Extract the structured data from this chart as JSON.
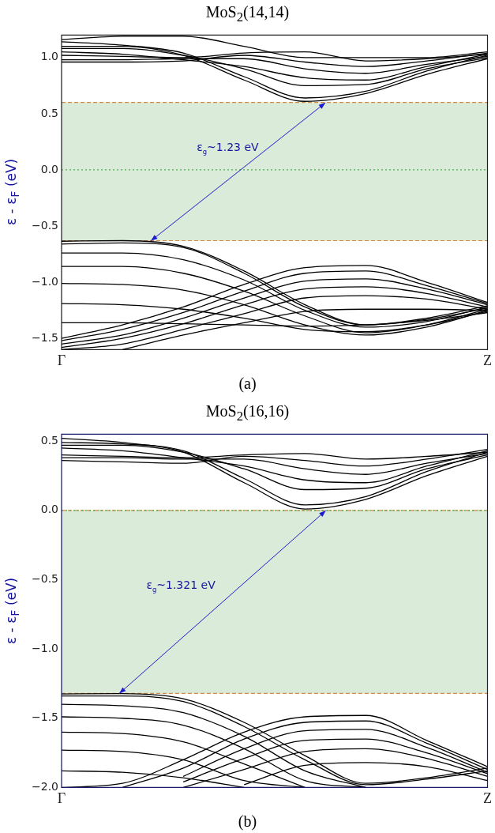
{
  "chart_data": [
    {
      "type": "line",
      "title": "MoS$_{2}$(14,14)",
      "ylabel": "ε - ε$_{F}$ (eV)",
      "categories": [
        "Γ",
        null,
        null,
        null,
        null,
        null,
        null,
        "Z"
      ],
      "ylim": [
        -1.6,
        1.2
      ],
      "yticks": [
        {
          "value": -1.5,
          "label": "−1.5"
        },
        {
          "value": -1,
          "label": "−1.0"
        },
        {
          "value": -0.5,
          "label": "−0.5"
        },
        {
          "value": 0,
          "label": "0.0"
        },
        {
          "value": 0.5,
          "label": "0.5"
        },
        {
          "value": 1,
          "label": "1.0"
        }
      ],
      "series": [
        {
          "color": "#000000",
          "values": [
            -0.635,
            -0.63,
            -0.68,
            -0.9,
            -1.2,
            -1.38,
            -1.32,
            -1.21
          ]
        },
        {
          "color": "#000000",
          "values": [
            -0.66,
            -0.65,
            -0.69,
            -0.92,
            -1.22,
            -1.38,
            -1.33,
            -1.23
          ]
        },
        {
          "color": "#000000",
          "values": [
            -0.74,
            -0.74,
            -0.8,
            -0.98,
            -1.25,
            -1.4,
            -1.35,
            -1.22
          ]
        },
        {
          "color": "#000000",
          "values": [
            -0.86,
            -0.86,
            -0.92,
            -1.08,
            -1.3,
            -1.45,
            -1.38,
            -1.24
          ]
        },
        {
          "color": "#000000",
          "values": [
            -1.01,
            -1.02,
            -1.07,
            -1.2,
            -1.38,
            -1.47,
            -1.4,
            -1.25
          ]
        },
        {
          "color": "#000000",
          "values": [
            -1.19,
            -1.2,
            -1.24,
            -1.32,
            -1.42,
            -1.44,
            -1.38,
            -1.26
          ]
        },
        {
          "color": "#000000",
          "values": [
            -1.36,
            -1.36,
            -1.37,
            -1.38,
            -1.39,
            -1.38,
            -1.34,
            -1.27
          ]
        },
        {
          "color": "#000000",
          "values": [
            -1.5,
            -1.38,
            -1.22,
            -1.02,
            -0.87,
            -0.85,
            -1.0,
            -1.18
          ]
        },
        {
          "color": "#000000",
          "values": [
            -1.52,
            -1.42,
            -1.27,
            -1.08,
            -0.92,
            -0.9,
            -1.03,
            -1.19
          ]
        },
        {
          "color": "#000000",
          "values": [
            -1.55,
            -1.47,
            -1.32,
            -1.14,
            -0.99,
            -0.97,
            -1.06,
            -1.2
          ]
        },
        {
          "color": "#000000",
          "values": [
            -1.58,
            -1.5,
            -1.37,
            -1.2,
            -1.06,
            -1.04,
            -1.1,
            -1.22
          ]
        },
        {
          "color": "#000000",
          "values": [
            -1.6,
            -1.55,
            -1.42,
            -1.28,
            -1.14,
            -1.12,
            -1.15,
            -1.24
          ]
        },
        {
          "color": "#000000",
          "values": [
            null,
            -1.6,
            -1.47,
            -1.36,
            -1.26,
            -1.24,
            -1.24,
            -1.25
          ]
        },
        {
          "color": "#000000",
          "values": [
            1.1,
            1.1,
            1.02,
            0.8,
            0.61,
            0.68,
            0.85,
            0.99
          ]
        },
        {
          "color": "#000000",
          "values": [
            1.14,
            1.11,
            1.04,
            0.83,
            0.64,
            0.7,
            0.88,
            1.02
          ]
        },
        {
          "color": "#000000",
          "values": [
            1.08,
            1.08,
            1.02,
            0.9,
            0.75,
            0.76,
            0.9,
            1.0
          ]
        },
        {
          "color": "#000000",
          "values": [
            1.05,
            1.03,
            0.98,
            0.92,
            0.82,
            0.8,
            0.92,
            1.03
          ]
        },
        {
          "color": "#000000",
          "values": [
            0.98,
            0.98,
            0.99,
            0.99,
            0.9,
            0.86,
            0.94,
            1.01
          ]
        },
        {
          "color": "#000000",
          "values": [
            0.96,
            0.96,
            0.97,
            1.02,
            0.96,
            0.92,
            0.97,
            1.04
          ]
        },
        {
          "color": "#000000",
          "values": [
            1.02,
            1.01,
            1.0,
            1.04,
            1.05,
            0.97,
            0.99,
            1.03
          ]
        },
        {
          "color": "#000000",
          "values": [
            1.16,
            1.19,
            1.19,
            1.1,
            1.0,
            1.0,
            1.0,
            1.05
          ]
        }
      ],
      "ref_lines": [
        {
          "axis": "y",
          "value": 0.6,
          "color": "#d08a4a",
          "line_style": "dashed"
        },
        {
          "axis": "y",
          "value": -0.63,
          "color": "#d08a4a",
          "line_style": "dashed"
        },
        {
          "axis": "y",
          "value": 0,
          "color": "#4caf50",
          "line_style": "dotted"
        }
      ],
      "bands": [
        {
          "axis": "y",
          "from": -0.63,
          "to": 0.6,
          "color": "#dbebda"
        }
      ],
      "annotations": [
        "ε$_{g}$~1.23 eV",
        "(a)"
      ]
    },
    {
      "type": "line",
      "title": "MoS$_{2}$(16,16)",
      "ylabel": "ε - ε$_{F}$ (eV)",
      "categories": [
        "Γ",
        null,
        null,
        null,
        null,
        null,
        null,
        "Z"
      ],
      "ylim": [
        -2,
        0.55
      ],
      "yticks": [
        {
          "value": -2,
          "label": "−2.0"
        },
        {
          "value": -1.5,
          "label": "−1.5"
        },
        {
          "value": -1,
          "label": "−1.0"
        },
        {
          "value": -0.5,
          "label": "−0.5"
        },
        {
          "value": 0,
          "label": "0.0"
        },
        {
          "value": 0.5,
          "label": "0.5"
        }
      ],
      "series": [
        {
          "color": "#000000",
          "values": [
            -1.325,
            -1.322,
            -1.36,
            -1.53,
            -1.77,
            -1.97,
            -1.93,
            -1.86
          ]
        },
        {
          "color": "#000000",
          "values": [
            -1.34,
            -1.34,
            -1.38,
            -1.56,
            -1.8,
            -1.98,
            -1.94,
            -1.88
          ]
        },
        {
          "color": "#000000",
          "values": [
            -1.4,
            -1.41,
            -1.46,
            -1.63,
            -1.88,
            -2.0,
            null,
            null
          ]
        },
        {
          "color": "#000000",
          "values": [
            -1.49,
            -1.5,
            -1.55,
            -1.72,
            -1.95,
            -2.0,
            null,
            null
          ]
        },
        {
          "color": "#000000",
          "values": [
            -1.6,
            -1.61,
            -1.67,
            -1.83,
            -2.0,
            null,
            null,
            null
          ]
        },
        {
          "color": "#000000",
          "values": [
            -1.73,
            -1.74,
            -1.8,
            -1.95,
            -2.0,
            null,
            null,
            null
          ]
        },
        {
          "color": "#000000",
          "values": [
            -1.88,
            -1.89,
            -1.93,
            -2.0,
            null,
            null,
            null,
            null
          ]
        },
        {
          "color": "#000000",
          "values": [
            -2.0,
            -1.97,
            -1.8,
            -1.6,
            -1.49,
            -1.48,
            -1.66,
            -1.85
          ]
        },
        {
          "color": "#000000",
          "values": [
            null,
            -2.0,
            -1.86,
            -1.65,
            -1.53,
            -1.52,
            -1.68,
            -1.87
          ]
        },
        {
          "color": "#000000",
          "values": [
            null,
            null,
            -1.92,
            -1.72,
            -1.59,
            -1.58,
            -1.71,
            -1.89
          ]
        },
        {
          "color": "#000000",
          "values": [
            null,
            null,
            -1.96,
            -1.79,
            -1.66,
            -1.65,
            -1.75,
            -1.9
          ]
        },
        {
          "color": "#000000",
          "values": [
            null,
            null,
            -2.0,
            -1.87,
            -1.74,
            -1.72,
            -1.79,
            -1.92
          ]
        },
        {
          "color": "#000000",
          "values": [
            null,
            null,
            null,
            -1.98,
            -1.84,
            -1.82,
            -1.85,
            -1.95
          ]
        },
        {
          "color": "#000000",
          "values": [
            0.52,
            0.49,
            0.42,
            0.2,
            0.01,
            0.08,
            0.25,
            0.39
          ]
        },
        {
          "color": "#000000",
          "values": [
            0.49,
            0.48,
            0.43,
            0.23,
            0.04,
            0.1,
            0.28,
            0.42
          ]
        },
        {
          "color": "#000000",
          "values": [
            0.47,
            0.47,
            0.42,
            0.3,
            0.15,
            0.16,
            0.3,
            0.4
          ]
        },
        {
          "color": "#000000",
          "values": [
            0.45,
            0.43,
            0.38,
            0.32,
            0.22,
            0.2,
            0.32,
            0.43
          ]
        },
        {
          "color": "#000000",
          "values": [
            0.38,
            0.38,
            0.37,
            0.37,
            0.3,
            0.26,
            0.34,
            0.41
          ]
        },
        {
          "color": "#000000",
          "values": [
            0.36,
            0.35,
            0.34,
            0.39,
            0.36,
            0.32,
            0.37,
            0.44
          ]
        },
        {
          "color": "#000000",
          "values": [
            0.4,
            0.39,
            0.38,
            0.4,
            0.41,
            0.37,
            0.39,
            0.42
          ]
        }
      ],
      "ref_lines": [
        {
          "axis": "y",
          "value": 0,
          "color": "#d08a4a",
          "line_style": "dashed"
        },
        {
          "axis": "y",
          "value": -1.321,
          "color": "#d08a4a",
          "line_style": "dashed"
        },
        {
          "axis": "y",
          "value": 0,
          "color": "#4caf50",
          "line_style": "dotted"
        }
      ],
      "bands": [
        {
          "axis": "y",
          "from": -1.321,
          "to": 0,
          "color": "#dbebda"
        }
      ],
      "annotations": [
        "ε$_{g}$~1.321 eV",
        "(b)"
      ]
    }
  ]
}
